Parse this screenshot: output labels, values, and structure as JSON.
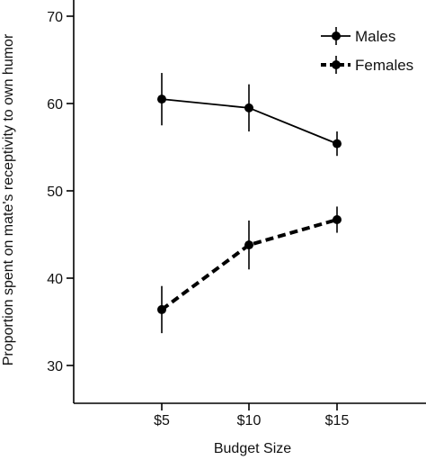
{
  "chart_data": {
    "type": "line",
    "title": "",
    "xlabel": "Budget Size",
    "ylabel": "Proportion spent on mate's receptivity to own humor",
    "categories": [
      "$5",
      "$10",
      "$15"
    ],
    "ylim": [
      25,
      72
    ],
    "yticks": [
      30,
      40,
      50,
      60,
      70
    ],
    "grid": false,
    "legend_position": "top-right",
    "series": [
      {
        "name": "Males",
        "line_style": "solid",
        "color": "#000000",
        "values": [
          60.5,
          59.5,
          55.4
        ],
        "error": [
          3.0,
          2.7,
          1.4
        ]
      },
      {
        "name": "Females",
        "line_style": "dashed",
        "color": "#000000",
        "values": [
          36.4,
          43.8,
          46.7
        ],
        "error": [
          2.7,
          2.8,
          1.5
        ]
      }
    ]
  }
}
